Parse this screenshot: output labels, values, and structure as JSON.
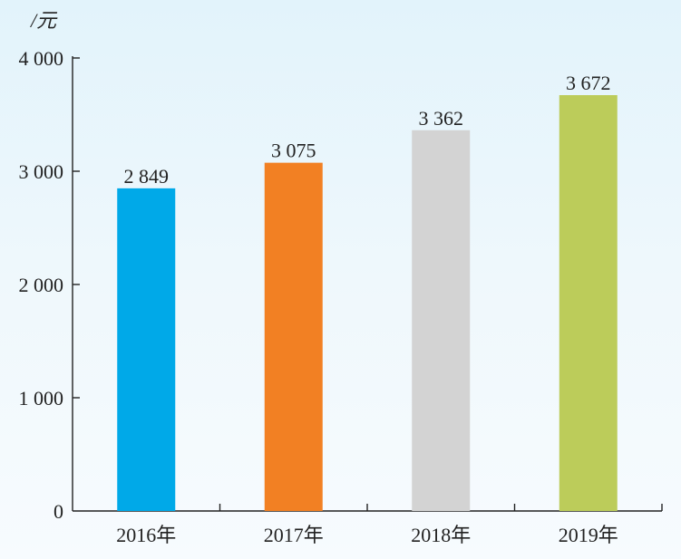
{
  "chart_data": {
    "type": "bar",
    "ylabel": "/元",
    "categories": [
      "2016年",
      "2017年",
      "2018年",
      "2019年"
    ],
    "values": [
      2849,
      3075,
      3362,
      3672
    ],
    "value_labels": [
      "2 849",
      "3 075",
      "3 362",
      "3 672"
    ],
    "bar_colors": [
      "#00a9e8",
      "#f28023",
      "#d3d3d3",
      "#bccc5a"
    ],
    "ylim": [
      0,
      4000
    ],
    "y_ticks": [
      0,
      1000,
      2000,
      3000,
      4000
    ],
    "y_tick_labels": [
      "0",
      "1 000",
      "2 000",
      "3 000",
      "4 000"
    ],
    "grid": false,
    "legend": "none"
  }
}
